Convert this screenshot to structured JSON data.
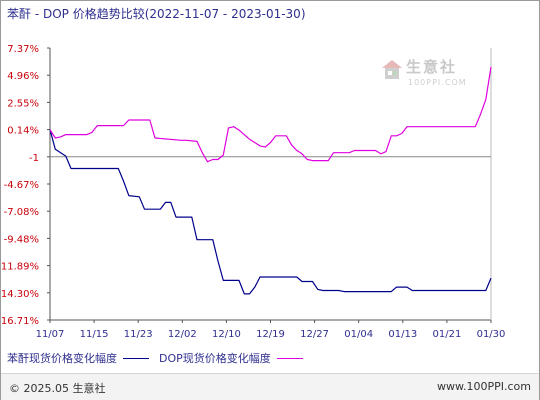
{
  "header": {
    "title": "苯酐 - DOP 价格趋势比较(2022-11-07 - 2023-01-30)"
  },
  "watermark": {
    "name": "生意社",
    "url": "100PPI.COM"
  },
  "legend": {
    "series1": "苯酐现货价格变化幅度",
    "series2": "DOP现货价格变化幅度"
  },
  "footer": {
    "copyright": "© 2025.05 生意社",
    "site": "www.100PPI.com"
  },
  "colors": {
    "series1": "#00008b",
    "series2": "#e000e0",
    "ylabels": "#c8000a",
    "xlabels": "#2f2f8f"
  },
  "chart_data": {
    "type": "line",
    "x_start": "2022-11-07",
    "x_end": "2023-01-30",
    "x_ticks": [
      "11/07",
      "11/15",
      "11/23",
      "12/02",
      "12/10",
      "12/19",
      "12/27",
      "01/04",
      "01/13",
      "01/21",
      "01/30"
    ],
    "y_ticks": [
      "7.37%",
      "4.96%",
      "2.55%",
      "0.14%",
      "-1",
      "-4.67%",
      "-7.08%",
      "-9.48%",
      "-11.89%",
      "-14.30%",
      "-16.71%"
    ],
    "ylim": [
      -16.71,
      7.37
    ],
    "series": [
      {
        "name": "苯酐现货价格变化幅度",
        "color": "#00008b",
        "points": [
          [
            "2022-11-07",
            0.14
          ],
          [
            "2022-11-08",
            -1.6
          ],
          [
            "2022-11-10",
            -2.2
          ],
          [
            "2022-11-11",
            -3.3
          ],
          [
            "2022-11-20",
            -3.3
          ],
          [
            "2022-11-21",
            -4.4
          ],
          [
            "2022-11-22",
            -5.7
          ],
          [
            "2022-11-24",
            -5.8
          ],
          [
            "2022-11-25",
            -6.9
          ],
          [
            "2022-11-28",
            -6.9
          ],
          [
            "2022-11-29",
            -6.3
          ],
          [
            "2022-11-30",
            -6.3
          ],
          [
            "2022-12-01",
            -7.6
          ],
          [
            "2022-12-04",
            -7.6
          ],
          [
            "2022-12-05",
            -9.6
          ],
          [
            "2022-12-08",
            -9.6
          ],
          [
            "2022-12-09",
            -11.5
          ],
          [
            "2022-12-10",
            -13.2
          ],
          [
            "2022-12-13",
            -13.2
          ],
          [
            "2022-12-14",
            -14.4
          ],
          [
            "2022-12-15",
            -14.4
          ],
          [
            "2022-12-16",
            -13.8
          ],
          [
            "2022-12-17",
            -12.9
          ],
          [
            "2022-12-24",
            -12.9
          ],
          [
            "2022-12-25",
            -13.3
          ],
          [
            "2022-12-27",
            -13.3
          ],
          [
            "2022-12-28",
            -14.0
          ],
          [
            "2022-12-29",
            -14.1
          ],
          [
            "2023-01-01",
            -14.1
          ],
          [
            "2023-01-02",
            -14.2
          ],
          [
            "2023-01-11",
            -14.2
          ],
          [
            "2023-01-12",
            -13.8
          ],
          [
            "2023-01-14",
            -13.8
          ],
          [
            "2023-01-15",
            -14.1
          ],
          [
            "2023-01-29",
            -14.1
          ],
          [
            "2023-01-30",
            -13.0
          ]
        ]
      },
      {
        "name": "DOP现货价格变化幅度",
        "color": "#e000e0",
        "points": [
          [
            "2022-11-07",
            0.14
          ],
          [
            "2022-11-08",
            -0.6
          ],
          [
            "2022-11-09",
            -0.5
          ],
          [
            "2022-11-10",
            -0.3
          ],
          [
            "2022-11-14",
            -0.3
          ],
          [
            "2022-11-15",
            -0.1
          ],
          [
            "2022-11-16",
            0.5
          ],
          [
            "2022-11-21",
            0.5
          ],
          [
            "2022-11-22",
            1.0
          ],
          [
            "2022-11-26",
            1.0
          ],
          [
            "2022-11-27",
            -0.6
          ],
          [
            "2022-12-02",
            -0.8
          ],
          [
            "2022-12-03",
            -0.8
          ],
          [
            "2022-12-05",
            -0.9
          ],
          [
            "2022-12-06",
            -1.9
          ],
          [
            "2022-12-07",
            -2.7
          ],
          [
            "2022-12-08",
            -2.5
          ],
          [
            "2022-12-09",
            -2.5
          ],
          [
            "2022-12-10",
            -2.1
          ],
          [
            "2022-12-11",
            0.3
          ],
          [
            "2022-12-12",
            0.4
          ],
          [
            "2022-12-13",
            0.1
          ],
          [
            "2022-12-15",
            -0.7
          ],
          [
            "2022-12-17",
            -1.3
          ],
          [
            "2022-12-18",
            -1.4
          ],
          [
            "2022-12-19",
            -1.0
          ],
          [
            "2022-12-20",
            -0.4
          ],
          [
            "2022-12-22",
            -0.4
          ],
          [
            "2022-12-23",
            -1.2
          ],
          [
            "2022-12-24",
            -1.7
          ],
          [
            "2022-12-25",
            -2.0
          ],
          [
            "2022-12-26",
            -2.5
          ],
          [
            "2022-12-27",
            -2.6
          ],
          [
            "2022-12-30",
            -2.6
          ],
          [
            "2022-12-31",
            -1.9
          ],
          [
            "2023-01-03",
            -1.9
          ],
          [
            "2023-01-04",
            -1.7
          ],
          [
            "2023-01-08",
            -1.7
          ],
          [
            "2023-01-09",
            -2.0
          ],
          [
            "2023-01-10",
            -1.8
          ],
          [
            "2023-01-11",
            -0.4
          ],
          [
            "2023-01-12",
            -0.4
          ],
          [
            "2023-01-13",
            -0.2
          ],
          [
            "2023-01-14",
            0.4
          ],
          [
            "2023-01-27",
            0.4
          ],
          [
            "2023-01-28",
            1.5
          ],
          [
            "2023-01-29",
            2.8
          ],
          [
            "2023-01-30",
            5.7
          ]
        ]
      }
    ],
    "grid": false,
    "reference_line": -1,
    "legend_position": "bottom"
  }
}
